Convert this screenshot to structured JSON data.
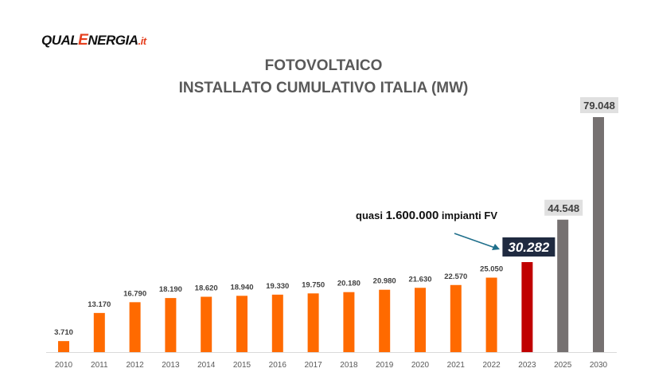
{
  "logo": {
    "part1": "QUAL",
    "part2": "E",
    "part3": "NERGIA",
    "part4": ".it"
  },
  "chart_data": {
    "type": "bar",
    "title": "FOTOVOLTAICO",
    "subtitle": "INSTALLATO CUMULATIVO ITALIA (MW)",
    "xlabel": "",
    "ylabel": "",
    "ylim": [
      0,
      80000
    ],
    "grid": false,
    "categories": [
      "2010",
      "2011",
      "2012",
      "2013",
      "2014",
      "2015",
      "2016",
      "2017",
      "2018",
      "2019",
      "2020",
      "2021",
      "2022",
      "2023",
      "2025",
      "2030"
    ],
    "values": [
      3710,
      13170,
      16790,
      18190,
      18620,
      18940,
      19330,
      19750,
      20180,
      20980,
      21630,
      22570,
      25050,
      30282,
      44548,
      79048
    ],
    "value_labels": [
      "3.710",
      "13.170",
      "16.790",
      "18.190",
      "18.620",
      "18.940",
      "19.330",
      "19.750",
      "20.180",
      "20.980",
      "21.630",
      "22.570",
      "25.050",
      "30.282",
      "44.548",
      "79.048"
    ],
    "colors": {
      "historical": "#ff6a00",
      "current": "#c00000",
      "projection": "#767171",
      "current_label_bg": "#1f2a40",
      "projection_label_bg": "#e0e0e0"
    },
    "annotation": {
      "prefix": "quasi ",
      "highlight": "1.600.000",
      "suffix": " impianti FV"
    }
  }
}
